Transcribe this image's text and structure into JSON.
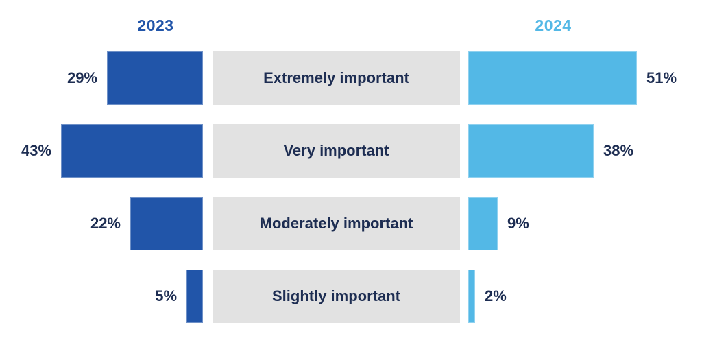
{
  "chart_data": {
    "type": "bar",
    "variant": "horizontal-mirrored-comparison",
    "title": "",
    "categories": [
      "Extremely important",
      "Very important",
      "Moderately important",
      "Slightly important"
    ],
    "series": [
      {
        "name": "2023",
        "values": [
          29,
          43,
          22,
          5
        ]
      },
      {
        "name": "2024",
        "values": [
          51,
          38,
          9,
          2
        ]
      }
    ],
    "value_unit": "%",
    "value_labels": {
      "2023": [
        "29%",
        "43%",
        "22%",
        "5%"
      ],
      "2024": [
        "51%",
        "38%",
        "9%",
        "2%"
      ]
    },
    "legend_position": "top",
    "axes": "none",
    "grid": false,
    "xlim_percent": [
      0,
      60
    ]
  },
  "colors": {
    "series_2023": "#2155a9",
    "series_2024": "#53b8e6",
    "category_box": "#e2e2e2",
    "text_navy": "#1d2d52",
    "background": "#ffffff"
  }
}
